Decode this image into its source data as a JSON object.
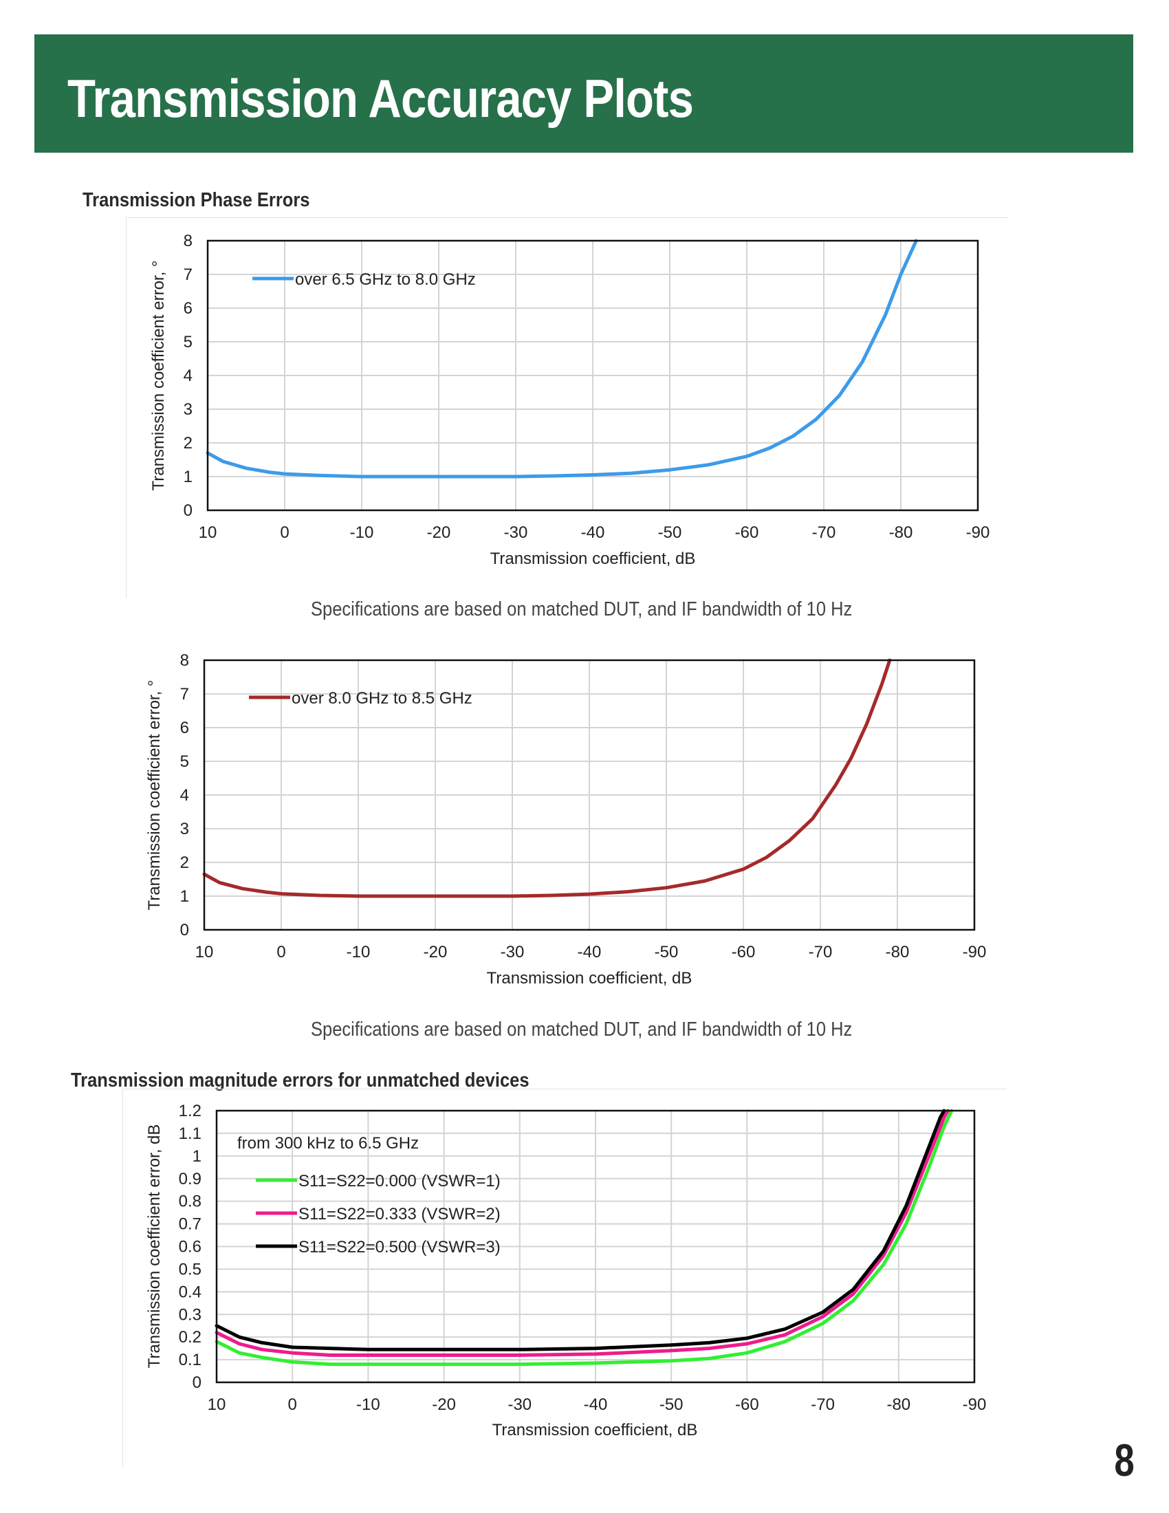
{
  "page": {
    "title": "Transmission Accuracy Plots",
    "page_number": "8",
    "header_color": "#26704a"
  },
  "sections": {
    "phase_title": "Transmission Phase Errors",
    "note_1": "Specifications are based on matched DUT, and IF bandwidth of 10 Hz",
    "note_2": "Specifications are based on matched DUT, and IF bandwidth of 10 Hz",
    "magnitude_title": "Transmission magnitude errors for unmatched devices"
  },
  "chart_data": [
    {
      "type": "line",
      "xlabel": "Transmission coefficient, dB",
      "ylabel": "Transmission coefficient error, °",
      "xlim": [
        10,
        -90
      ],
      "ylim": [
        0,
        8
      ],
      "xticks": [
        10,
        0,
        -10,
        -20,
        -30,
        -40,
        -50,
        -60,
        -70,
        -80,
        -90
      ],
      "yticks": [
        0,
        1,
        2,
        3,
        4,
        5,
        6,
        7,
        8
      ],
      "grid": true,
      "legend_position": "top-left",
      "series": [
        {
          "name": "over 6.5 GHz to 8.0 GHz",
          "color": "#3d9be9",
          "x": [
            10,
            8,
            5,
            2,
            0,
            -5,
            -10,
            -20,
            -30,
            -35,
            -40,
            -45,
            -50,
            -55,
            -60,
            -63,
            -66,
            -69,
            -72,
            -75,
            -78,
            -80,
            -82
          ],
          "y": [
            1.7,
            1.45,
            1.25,
            1.13,
            1.08,
            1.03,
            1.0,
            1.0,
            1.0,
            1.02,
            1.05,
            1.1,
            1.2,
            1.35,
            1.6,
            1.85,
            2.2,
            2.7,
            3.4,
            4.4,
            5.8,
            7.0,
            8.0
          ]
        }
      ]
    },
    {
      "type": "line",
      "xlabel": "Transmission coefficient, dB",
      "ylabel": "Transmission coefficient error, °",
      "xlim": [
        10,
        -90
      ],
      "ylim": [
        0,
        8
      ],
      "xticks": [
        10,
        0,
        -10,
        -20,
        -30,
        -40,
        -50,
        -60,
        -70,
        -80,
        -90
      ],
      "yticks": [
        0,
        1,
        2,
        3,
        4,
        5,
        6,
        7,
        8
      ],
      "grid": true,
      "legend_position": "top-left",
      "series": [
        {
          "name": "over 8.0 GHz to 8.5 GHz",
          "color": "#a52a2a",
          "x": [
            10,
            8,
            5,
            2,
            0,
            -5,
            -10,
            -20,
            -30,
            -35,
            -40,
            -45,
            -50,
            -55,
            -60,
            -63,
            -66,
            -69,
            -72,
            -74,
            -76,
            -78,
            -79
          ],
          "y": [
            1.65,
            1.4,
            1.22,
            1.12,
            1.07,
            1.02,
            1.0,
            1.0,
            1.0,
            1.02,
            1.06,
            1.13,
            1.25,
            1.45,
            1.8,
            2.15,
            2.65,
            3.3,
            4.3,
            5.1,
            6.1,
            7.3,
            8.0
          ]
        }
      ]
    },
    {
      "type": "line",
      "annotation": "from 300 kHz to 6.5 GHz",
      "xlabel": "Transmission coefficient, dB",
      "ylabel": "Transmission coefficient error, dB",
      "xlim": [
        10,
        -90
      ],
      "ylim": [
        0,
        1.2
      ],
      "xticks": [
        10,
        0,
        -10,
        -20,
        -30,
        -40,
        -50,
        -60,
        -70,
        -80,
        -90
      ],
      "yticks": [
        0,
        0.1,
        0.2,
        0.3,
        0.4,
        0.5,
        0.6,
        0.7,
        0.8,
        0.9,
        1,
        1.1,
        1.2
      ],
      "ytick_labels": [
        "0",
        "0.1",
        "0.2",
        "0.3",
        "0.4",
        "0.5",
        "0.6",
        "0.7",
        "0.8",
        "0.9",
        "1",
        "1.1",
        "1.2"
      ],
      "grid": true,
      "legend_position": "top-left",
      "series": [
        {
          "name": "S11=S22=0.000 (VSWR=1)",
          "color": "#33ee33",
          "x": [
            10,
            7,
            4,
            0,
            -5,
            -10,
            -20,
            -30,
            -40,
            -50,
            -55,
            -60,
            -65,
            -70,
            -74,
            -78,
            -81,
            -84,
            -86,
            -87
          ],
          "y": [
            0.18,
            0.13,
            0.11,
            0.09,
            0.08,
            0.08,
            0.08,
            0.08,
            0.085,
            0.095,
            0.105,
            0.13,
            0.18,
            0.26,
            0.36,
            0.52,
            0.7,
            0.95,
            1.13,
            1.2
          ]
        },
        {
          "name": "S11=S22=0.333 (VSWR=2)",
          "color": "#ee1c8c",
          "x": [
            10,
            7,
            4,
            0,
            -5,
            -10,
            -20,
            -30,
            -40,
            -50,
            -55,
            -60,
            -65,
            -70,
            -74,
            -78,
            -81,
            -84,
            -86,
            -86.5
          ],
          "y": [
            0.22,
            0.17,
            0.145,
            0.13,
            0.12,
            0.12,
            0.12,
            0.12,
            0.125,
            0.14,
            0.15,
            0.17,
            0.21,
            0.29,
            0.39,
            0.56,
            0.75,
            1.0,
            1.17,
            1.2
          ]
        },
        {
          "name": "S11=S22=0.500 (VSWR=3)",
          "color": "#000000",
          "x": [
            10,
            7,
            4,
            0,
            -5,
            -10,
            -20,
            -30,
            -40,
            -50,
            -55,
            -60,
            -65,
            -70,
            -74,
            -78,
            -81,
            -84,
            -85.5,
            -86
          ],
          "y": [
            0.25,
            0.2,
            0.175,
            0.155,
            0.15,
            0.145,
            0.145,
            0.145,
            0.15,
            0.165,
            0.175,
            0.195,
            0.235,
            0.31,
            0.41,
            0.58,
            0.78,
            1.04,
            1.17,
            1.2
          ]
        }
      ]
    }
  ]
}
